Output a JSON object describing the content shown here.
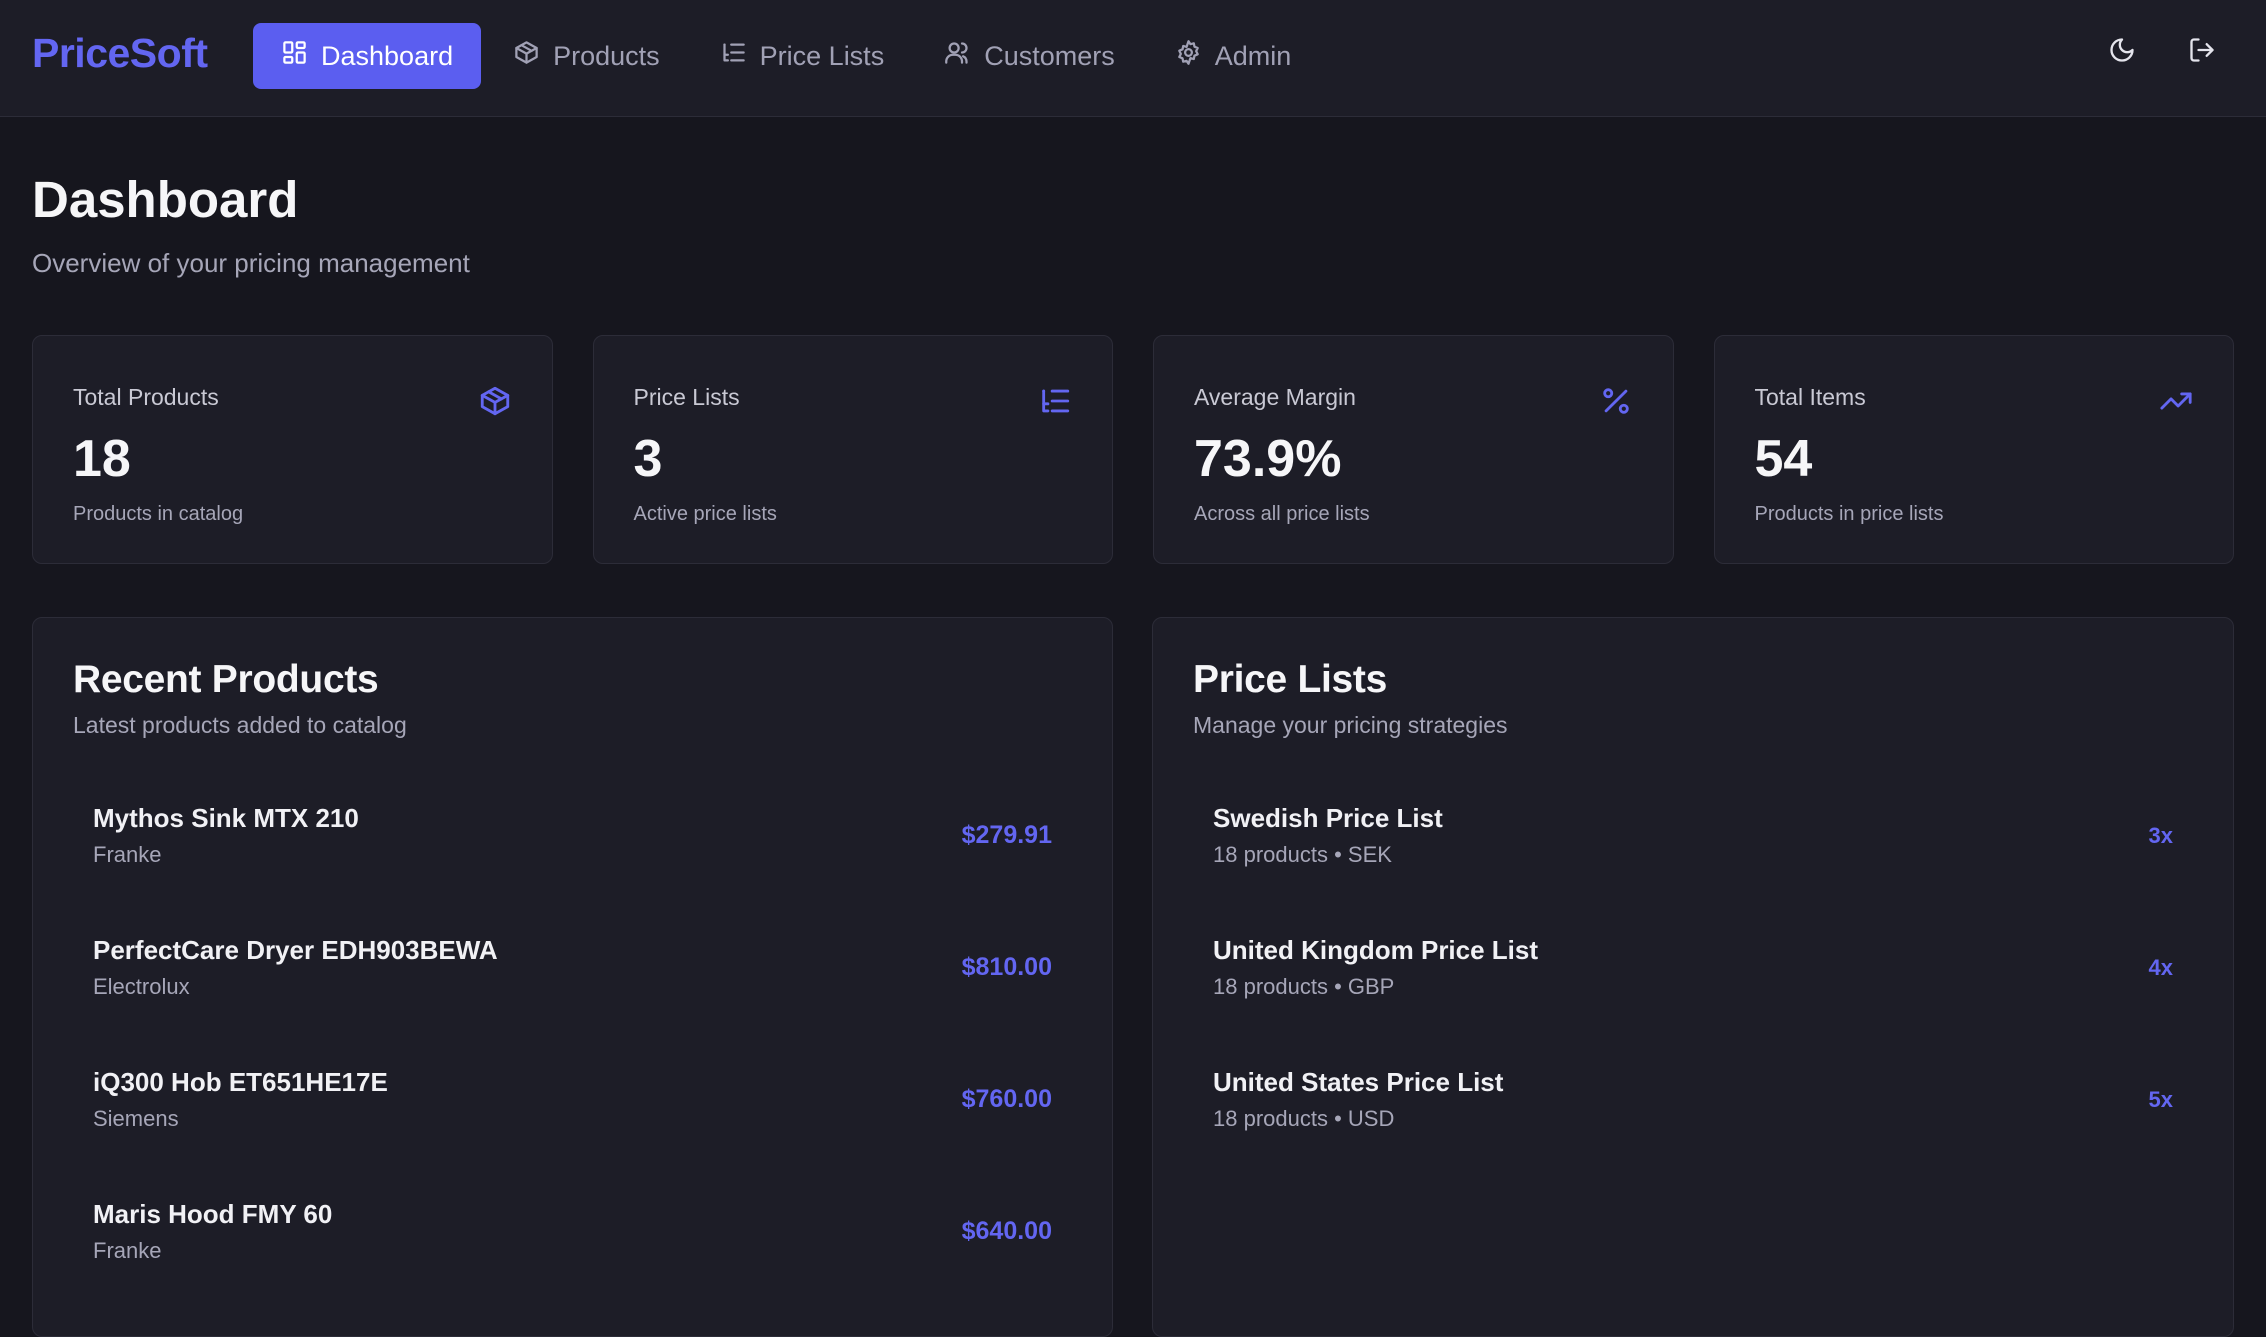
{
  "brand": "PriceSoft",
  "nav": [
    {
      "label": "Dashboard",
      "icon": "dashboard-icon",
      "active": true
    },
    {
      "label": "Products",
      "icon": "box-icon"
    },
    {
      "label": "Price Lists",
      "icon": "list-icon"
    },
    {
      "label": "Customers",
      "icon": "users-icon"
    },
    {
      "label": "Admin",
      "icon": "gear-icon"
    }
  ],
  "actions": {
    "theme_icon": "moon-icon",
    "logout_icon": "logout-icon"
  },
  "header": {
    "title": "Dashboard",
    "subtitle": "Overview of your pricing management"
  },
  "stats": [
    {
      "label": "Total Products",
      "value": "18",
      "desc": "Products in catalog",
      "icon": "box-icon"
    },
    {
      "label": "Price Lists",
      "value": "3",
      "desc": "Active price lists",
      "icon": "list-icon"
    },
    {
      "label": "Average Margin",
      "value": "73.9%",
      "desc": "Across all price lists",
      "icon": "percent-icon"
    },
    {
      "label": "Total Items",
      "value": "54",
      "desc": "Products in price lists",
      "icon": "trending-up-icon"
    }
  ],
  "recent_products": {
    "title": "Recent Products",
    "subtitle": "Latest products added to catalog",
    "items": [
      {
        "name": "Mythos Sink MTX 210",
        "brand": "Franke",
        "price": "$279.91"
      },
      {
        "name": "PerfectCare Dryer EDH903BEWA",
        "brand": "Electrolux",
        "price": "$810.00"
      },
      {
        "name": "iQ300 Hob ET651HE17E",
        "brand": "Siemens",
        "price": "$760.00"
      },
      {
        "name": "Maris Hood FMY 60",
        "brand": "Franke",
        "price": "$640.00"
      }
    ]
  },
  "price_lists": {
    "title": "Price Lists",
    "subtitle": "Manage your pricing strategies",
    "items": [
      {
        "name": "Swedish Price List",
        "meta": "18 products • SEK",
        "multiplier": "3x"
      },
      {
        "name": "United Kingdom Price List",
        "meta": "18 products • GBP",
        "multiplier": "4x"
      },
      {
        "name": "United States Price List",
        "meta": "18 products • USD",
        "multiplier": "5x"
      }
    ]
  },
  "colors": {
    "accent": "#6366f1",
    "background": "#16161e",
    "card": "#1d1d27"
  }
}
